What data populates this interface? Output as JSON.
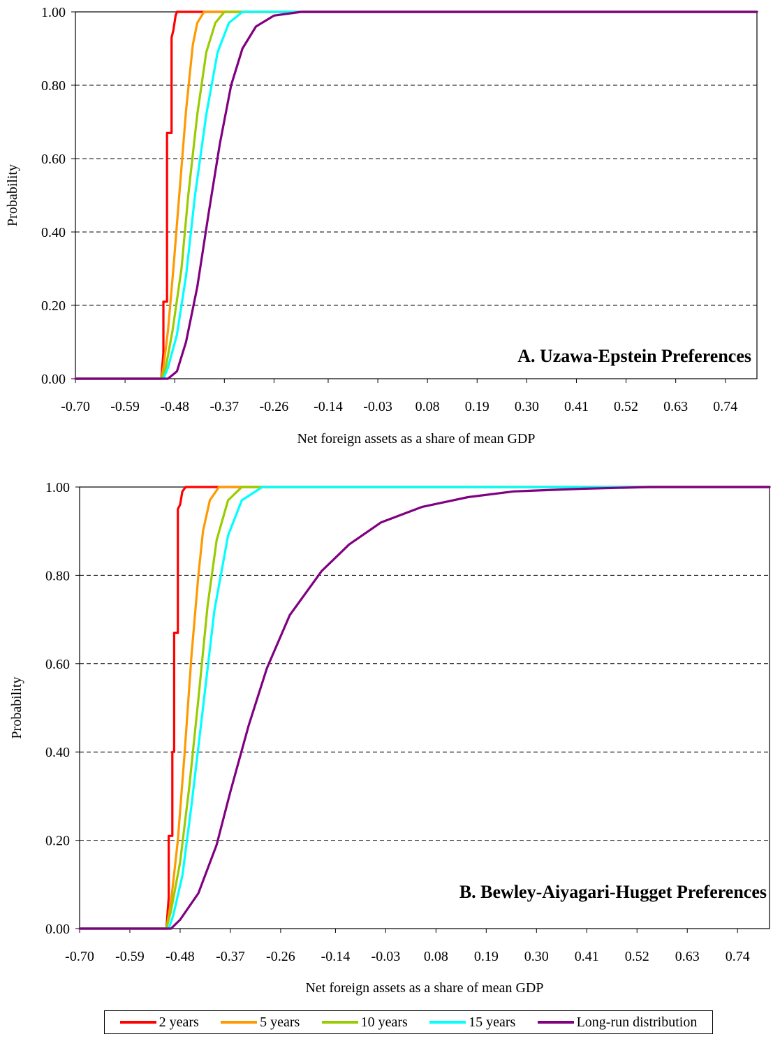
{
  "chart_data": [
    {
      "type": "line",
      "title": "A.  Uzawa-Epstein Preferences",
      "xlabel": "Net foreign assets as a share of mean GDP",
      "ylabel": "Probability",
      "xlim": [
        -0.7,
        0.81
      ],
      "ylim": [
        0,
        1
      ],
      "x_ticks": [
        "-0.70",
        "-0.59",
        "-0.48",
        "-0.37",
        "-0.26",
        "-0.14",
        "-0.03",
        "0.08",
        "0.19",
        "0.30",
        "0.41",
        "0.52",
        "0.63",
        "0.74"
      ],
      "y_ticks": [
        "0.00",
        "0.20",
        "0.40",
        "0.60",
        "0.80",
        "1.00"
      ],
      "grid": "horizontal dashed",
      "series": [
        {
          "name": "2 years",
          "color": "#ff0000",
          "points": [
            [
              -0.7,
              0
            ],
            [
              -0.51,
              0
            ],
            [
              -0.505,
              0.07
            ],
            [
              -0.505,
              0.21
            ],
            [
              -0.497,
              0.21
            ],
            [
              -0.497,
              0.67
            ],
            [
              -0.487,
              0.67
            ],
            [
              -0.487,
              0.93
            ],
            [
              -0.483,
              0.95
            ],
            [
              -0.478,
              0.99
            ],
            [
              -0.475,
              1.0
            ],
            [
              0.81,
              1.0
            ]
          ]
        },
        {
          "name": "5 years",
          "color": "#ff9900",
          "points": [
            [
              -0.7,
              0
            ],
            [
              -0.51,
              0
            ],
            [
              -0.505,
              0.03
            ],
            [
              -0.495,
              0.13
            ],
            [
              -0.483,
              0.3
            ],
            [
              -0.47,
              0.5
            ],
            [
              -0.455,
              0.73
            ],
            [
              -0.44,
              0.91
            ],
            [
              -0.43,
              0.97
            ],
            [
              -0.415,
              1.0
            ],
            [
              0.81,
              1.0
            ]
          ]
        },
        {
          "name": "10 years",
          "color": "#99cc00",
          "points": [
            [
              -0.7,
              0
            ],
            [
              -0.51,
              0
            ],
            [
              -0.5,
              0.03
            ],
            [
              -0.485,
              0.13
            ],
            [
              -0.465,
              0.3
            ],
            [
              -0.45,
              0.5
            ],
            [
              -0.43,
              0.72
            ],
            [
              -0.41,
              0.89
            ],
            [
              -0.39,
              0.97
            ],
            [
              -0.37,
              1.0
            ],
            [
              0.81,
              1.0
            ]
          ]
        },
        {
          "name": "15 years",
          "color": "#00ffff",
          "points": [
            [
              -0.7,
              0
            ],
            [
              -0.505,
              0
            ],
            [
              -0.495,
              0.03
            ],
            [
              -0.475,
              0.12
            ],
            [
              -0.455,
              0.28
            ],
            [
              -0.435,
              0.5
            ],
            [
              -0.41,
              0.72
            ],
            [
              -0.385,
              0.89
            ],
            [
              -0.36,
              0.97
            ],
            [
              -0.33,
              1.0
            ],
            [
              0.81,
              1.0
            ]
          ]
        },
        {
          "name": "Long-run distribution",
          "color": "#800080",
          "points": [
            [
              -0.7,
              0
            ],
            [
              -0.495,
              0
            ],
            [
              -0.475,
              0.02
            ],
            [
              -0.455,
              0.1
            ],
            [
              -0.43,
              0.25
            ],
            [
              -0.405,
              0.45
            ],
            [
              -0.38,
              0.64
            ],
            [
              -0.355,
              0.8
            ],
            [
              -0.33,
              0.9
            ],
            [
              -0.3,
              0.96
            ],
            [
              -0.26,
              0.99
            ],
            [
              -0.2,
              1.0
            ],
            [
              0.81,
              1.0
            ]
          ]
        }
      ]
    },
    {
      "type": "line",
      "title": "B. Bewley-Aiyagari-Hugget Preferences",
      "xlabel": "Net foreign assets as a share of mean GDP",
      "ylabel": "Probability",
      "xlim": [
        -0.7,
        0.81
      ],
      "ylim": [
        0,
        1
      ],
      "x_ticks": [
        "-0.70",
        "-0.59",
        "-0.48",
        "-0.37",
        "-0.26",
        "-0.14",
        "-0.03",
        "0.08",
        "0.19",
        "0.30",
        "0.41",
        "0.52",
        "0.63",
        "0.74"
      ],
      "y_ticks": [
        "0.00",
        "0.20",
        "0.40",
        "0.60",
        "0.80",
        "1.00"
      ],
      "grid": "horizontal dashed",
      "series": [
        {
          "name": "2 years",
          "color": "#ff0000",
          "points": [
            [
              -0.7,
              0
            ],
            [
              -0.51,
              0
            ],
            [
              -0.505,
              0.07
            ],
            [
              -0.505,
              0.21
            ],
            [
              -0.497,
              0.21
            ],
            [
              -0.497,
              0.4
            ],
            [
              -0.493,
              0.4
            ],
            [
              -0.493,
              0.67
            ],
            [
              -0.485,
              0.67
            ],
            [
              -0.485,
              0.95
            ],
            [
              -0.48,
              0.96
            ],
            [
              -0.475,
              0.99
            ],
            [
              -0.468,
              1.0
            ],
            [
              0.81,
              1.0
            ]
          ]
        },
        {
          "name": "5 years",
          "color": "#ff9900",
          "points": [
            [
              -0.7,
              0
            ],
            [
              -0.51,
              0
            ],
            [
              -0.5,
              0.06
            ],
            [
              -0.485,
              0.2
            ],
            [
              -0.47,
              0.4
            ],
            [
              -0.455,
              0.62
            ],
            [
              -0.44,
              0.8
            ],
            [
              -0.43,
              0.9
            ],
            [
              -0.415,
              0.97
            ],
            [
              -0.395,
              1.0
            ],
            [
              0.81,
              1.0
            ]
          ]
        },
        {
          "name": "10 years",
          "color": "#99cc00",
          "points": [
            [
              -0.7,
              0
            ],
            [
              -0.51,
              0
            ],
            [
              -0.5,
              0.04
            ],
            [
              -0.48,
              0.15
            ],
            [
              -0.46,
              0.32
            ],
            [
              -0.44,
              0.52
            ],
            [
              -0.42,
              0.73
            ],
            [
              -0.4,
              0.88
            ],
            [
              -0.375,
              0.97
            ],
            [
              -0.345,
              1.0
            ],
            [
              0.81,
              1.0
            ]
          ]
        },
        {
          "name": "15 years",
          "color": "#00ffff",
          "points": [
            [
              -0.7,
              0
            ],
            [
              -0.505,
              0
            ],
            [
              -0.495,
              0.03
            ],
            [
              -0.475,
              0.12
            ],
            [
              -0.455,
              0.28
            ],
            [
              -0.43,
              0.5
            ],
            [
              -0.405,
              0.72
            ],
            [
              -0.375,
              0.89
            ],
            [
              -0.345,
              0.97
            ],
            [
              -0.3,
              1.0
            ],
            [
              0.81,
              1.0
            ]
          ]
        },
        {
          "name": "Long-run distribution",
          "color": "#800080",
          "points": [
            [
              -0.7,
              0
            ],
            [
              -0.5,
              0
            ],
            [
              -0.48,
              0.02
            ],
            [
              -0.44,
              0.08
            ],
            [
              -0.4,
              0.19
            ],
            [
              -0.37,
              0.31
            ],
            [
              -0.33,
              0.46
            ],
            [
              -0.29,
              0.59
            ],
            [
              -0.24,
              0.71
            ],
            [
              -0.17,
              0.81
            ],
            [
              -0.11,
              0.87
            ],
            [
              -0.04,
              0.92
            ],
            [
              0.05,
              0.955
            ],
            [
              0.15,
              0.977
            ],
            [
              0.25,
              0.99
            ],
            [
              0.4,
              0.996
            ],
            [
              0.55,
              1.0
            ],
            [
              0.81,
              1.0
            ]
          ]
        }
      ]
    }
  ],
  "legend": {
    "items": [
      {
        "label": "2 years",
        "color": "#ff0000"
      },
      {
        "label": "5 years",
        "color": "#ff9900"
      },
      {
        "label": "10 years",
        "color": "#99cc00"
      },
      {
        "label": "15 years",
        "color": "#00ffff"
      },
      {
        "label": "Long-run distribution",
        "color": "#800080"
      }
    ]
  }
}
